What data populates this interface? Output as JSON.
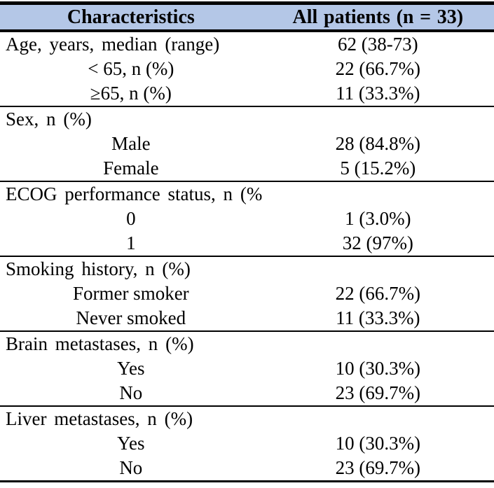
{
  "colors": {
    "header_bg": "#B4C7E7",
    "border": "#000000"
  },
  "table": {
    "columns": [
      "Characteristics",
      "All patients (n = 33)"
    ],
    "rows": [
      {
        "label": "Age, years, median (range)",
        "value": "62 (38-73)"
      },
      {
        "label": "< 65, n (%)",
        "value": "22 (66.7%)"
      },
      {
        "label": "≥65, n (%)",
        "value": "11 (33.3%)"
      },
      {
        "label": "Sex, n (%)",
        "value": ""
      },
      {
        "label": "Male",
        "value": "28 (84.8%)"
      },
      {
        "label": "Female",
        "value": "5 (15.2%)"
      },
      {
        "label": "ECOG performance status, n (%)",
        "value": ""
      },
      {
        "label": "0",
        "value": "1 (3.0%)"
      },
      {
        "label": "1",
        "value": "32 (97%)"
      },
      {
        "label": "Smoking history, n (%)",
        "value": ""
      },
      {
        "label": "Former smoker",
        "value": "22 (66.7%)"
      },
      {
        "label": "Never smoked",
        "value": "11 (33.3%)"
      },
      {
        "label": "Brain metastases, n (%)",
        "value": ""
      },
      {
        "label": "Yes",
        "value": "10 (30.3%)"
      },
      {
        "label": "No",
        "value": "23 (69.7%)"
      },
      {
        "label": "Liver metastases, n (%)",
        "value": ""
      },
      {
        "label": "Yes",
        "value": "10 (30.3%)"
      },
      {
        "label": "No",
        "value": "23 (69.7%)"
      }
    ]
  }
}
